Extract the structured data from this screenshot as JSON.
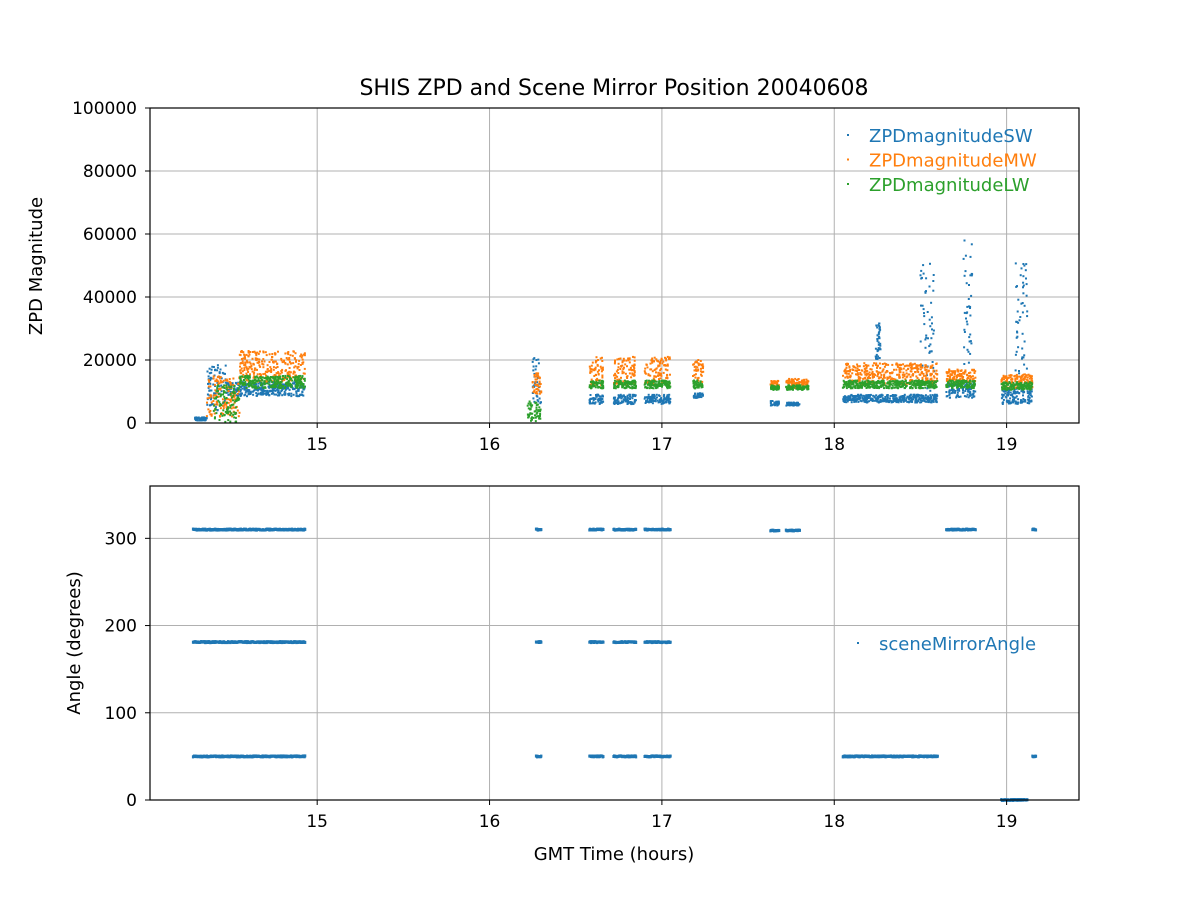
{
  "chart_data": [
    {
      "type": "scatter",
      "title": "SHIS ZPD and Scene Mirror Position 20040608",
      "xlabel": "",
      "ylabel": "ZPD Magnitude",
      "xlim": [
        14.03,
        19.42
      ],
      "ylim": [
        0,
        100000
      ],
      "xticks": [
        "15",
        "16",
        "17",
        "18",
        "19"
      ],
      "yticks": [
        "0",
        "20000",
        "40000",
        "60000",
        "80000",
        "100000"
      ],
      "grid": true,
      "legend": "top-right",
      "series": [
        {
          "name": "ZPDmagnitudeSW",
          "color": "#1f77b4",
          "segments": [
            {
              "x0": 14.29,
              "x1": 14.36,
              "y0": 800,
              "y1": 1800
            },
            {
              "x0": 14.36,
              "x1": 14.47,
              "y0": 3000,
              "y1": 19000
            },
            {
              "x0": 14.47,
              "x1": 14.93,
              "y0": 8500,
              "y1": 13000
            },
            {
              "x0": 16.25,
              "x1": 16.3,
              "y0": 6000,
              "y1": 21000
            },
            {
              "x0": 16.58,
              "x1": 16.66,
              "y0": 6000,
              "y1": 9000
            },
            {
              "x0": 16.72,
              "x1": 16.85,
              "y0": 6000,
              "y1": 9000
            },
            {
              "x0": 16.9,
              "x1": 17.05,
              "y0": 6000,
              "y1": 9000
            },
            {
              "x0": 17.18,
              "x1": 17.24,
              "y0": 8000,
              "y1": 9500
            },
            {
              "x0": 17.63,
              "x1": 17.68,
              "y0": 5500,
              "y1": 7000
            },
            {
              "x0": 17.72,
              "x1": 17.8,
              "y0": 5500,
              "y1": 6500
            },
            {
              "x0": 18.05,
              "x1": 18.6,
              "y0": 6500,
              "y1": 9000
            },
            {
              "x0": 18.24,
              "x1": 18.27,
              "y0": 20000,
              "y1": 32000
            },
            {
              "x0": 18.5,
              "x1": 18.58,
              "y0": 10000,
              "y1": 53000
            },
            {
              "x0": 18.65,
              "x1": 18.82,
              "y0": 8000,
              "y1": 13000
            },
            {
              "x0": 18.75,
              "x1": 18.8,
              "y0": 15000,
              "y1": 58000
            },
            {
              "x0": 18.97,
              "x1": 19.15,
              "y0": 6000,
              "y1": 11000
            },
            {
              "x0": 19.05,
              "x1": 19.12,
              "y0": 15000,
              "y1": 51000
            }
          ]
        },
        {
          "name": "ZPDmagnitudeMW",
          "color": "#ff7f0e",
          "segments": [
            {
              "x0": 14.36,
              "x1": 14.55,
              "y0": 2000,
              "y1": 15000
            },
            {
              "x0": 14.55,
              "x1": 14.93,
              "y0": 13000,
              "y1": 23000
            },
            {
              "x0": 16.25,
              "x1": 16.3,
              "y0": 9000,
              "y1": 16000
            },
            {
              "x0": 16.58,
              "x1": 16.66,
              "y0": 12000,
              "y1": 21000
            },
            {
              "x0": 16.72,
              "x1": 16.85,
              "y0": 12000,
              "y1": 21000
            },
            {
              "x0": 16.9,
              "x1": 17.05,
              "y0": 12000,
              "y1": 21000
            },
            {
              "x0": 17.18,
              "x1": 17.24,
              "y0": 13000,
              "y1": 20000
            },
            {
              "x0": 17.63,
              "x1": 17.68,
              "y0": 11000,
              "y1": 13500
            },
            {
              "x0": 17.72,
              "x1": 17.85,
              "y0": 11000,
              "y1": 14000
            },
            {
              "x0": 18.05,
              "x1": 18.6,
              "y0": 12000,
              "y1": 19000
            },
            {
              "x0": 18.65,
              "x1": 18.82,
              "y0": 13000,
              "y1": 17000
            },
            {
              "x0": 18.97,
              "x1": 19.15,
              "y0": 11000,
              "y1": 15500
            }
          ]
        },
        {
          "name": "ZPDmagnitudeLW",
          "color": "#2ca02c",
          "segments": [
            {
              "x0": 14.4,
              "x1": 14.55,
              "y0": 300,
              "y1": 12000
            },
            {
              "x0": 14.55,
              "x1": 14.93,
              "y0": 11000,
              "y1": 15000
            },
            {
              "x0": 16.22,
              "x1": 16.3,
              "y0": 500,
              "y1": 7000
            },
            {
              "x0": 16.58,
              "x1": 16.66,
              "y0": 11000,
              "y1": 13500
            },
            {
              "x0": 16.72,
              "x1": 16.85,
              "y0": 11000,
              "y1": 13500
            },
            {
              "x0": 16.9,
              "x1": 17.05,
              "y0": 11000,
              "y1": 13500
            },
            {
              "x0": 17.18,
              "x1": 17.24,
              "y0": 11000,
              "y1": 13500
            },
            {
              "x0": 17.63,
              "x1": 17.68,
              "y0": 10500,
              "y1": 12000
            },
            {
              "x0": 17.72,
              "x1": 17.85,
              "y0": 10500,
              "y1": 12000
            },
            {
              "x0": 18.05,
              "x1": 18.6,
              "y0": 11000,
              "y1": 13500
            },
            {
              "x0": 18.65,
              "x1": 18.82,
              "y0": 11000,
              "y1": 13500
            },
            {
              "x0": 18.97,
              "x1": 19.15,
              "y0": 10500,
              "y1": 13000
            }
          ]
        }
      ]
    },
    {
      "type": "scatter",
      "title": "",
      "xlabel": "GMT Time (hours)",
      "ylabel": "Angle (degrees)",
      "xlim": [
        14.03,
        19.42
      ],
      "ylim": [
        0,
        360
      ],
      "xticks": [
        "15",
        "16",
        "17",
        "18",
        "19"
      ],
      "yticks": [
        "0",
        "100",
        "200",
        "300"
      ],
      "grid": true,
      "legend": "center-right",
      "series": [
        {
          "name": "sceneMirrorAngle",
          "color": "#1f77b4",
          "runs": [
            {
              "x0": 14.28,
              "x1": 14.93,
              "y": 310
            },
            {
              "x0": 14.28,
              "x1": 14.93,
              "y": 181
            },
            {
              "x0": 14.28,
              "x1": 14.93,
              "y": 50
            },
            {
              "x0": 16.27,
              "x1": 16.3,
              "y": 310
            },
            {
              "x0": 16.27,
              "x1": 16.3,
              "y": 181
            },
            {
              "x0": 16.27,
              "x1": 16.3,
              "y": 50
            },
            {
              "x0": 16.58,
              "x1": 16.66,
              "y": 310
            },
            {
              "x0": 16.58,
              "x1": 16.66,
              "y": 181
            },
            {
              "x0": 16.58,
              "x1": 16.66,
              "y": 50
            },
            {
              "x0": 16.72,
              "x1": 16.85,
              "y": 310
            },
            {
              "x0": 16.72,
              "x1": 16.85,
              "y": 181
            },
            {
              "x0": 16.72,
              "x1": 16.85,
              "y": 50
            },
            {
              "x0": 16.9,
              "x1": 17.05,
              "y": 310
            },
            {
              "x0": 16.9,
              "x1": 17.05,
              "y": 181
            },
            {
              "x0": 16.9,
              "x1": 17.05,
              "y": 50
            },
            {
              "x0": 17.63,
              "x1": 17.68,
              "y": 309
            },
            {
              "x0": 17.72,
              "x1": 17.8,
              "y": 309
            },
            {
              "x0": 18.05,
              "x1": 18.6,
              "y": 50
            },
            {
              "x0": 18.65,
              "x1": 18.82,
              "y": 310
            },
            {
              "x0": 18.97,
              "x1": 19.12,
              "y": 0
            },
            {
              "x0": 19.15,
              "x1": 19.17,
              "y": 310
            },
            {
              "x0": 19.15,
              "x1": 19.17,
              "y": 50
            }
          ]
        }
      ]
    }
  ]
}
